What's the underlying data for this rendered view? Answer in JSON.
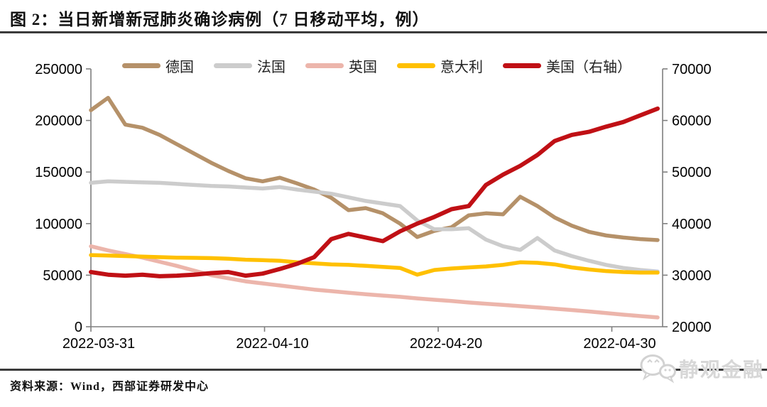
{
  "header": {
    "title": "图 2：当日新增新冠肺炎确诊病例（7 日移动平均，例）"
  },
  "chart_data": {
    "type": "line",
    "title": "当日新增新冠肺炎确诊病例（7日移动平均，例）",
    "grid": false,
    "legend_position": "top",
    "x_dates": [
      "2022-03-31",
      "2022-04-01",
      "2022-04-02",
      "2022-04-03",
      "2022-04-04",
      "2022-04-05",
      "2022-04-06",
      "2022-04-07",
      "2022-04-08",
      "2022-04-09",
      "2022-04-10",
      "2022-04-11",
      "2022-04-12",
      "2022-04-13",
      "2022-04-14",
      "2022-04-15",
      "2022-04-16",
      "2022-04-17",
      "2022-04-18",
      "2022-04-19",
      "2022-04-20",
      "2022-04-21",
      "2022-04-22",
      "2022-04-23",
      "2022-04-24",
      "2022-04-25",
      "2022-04-26",
      "2022-04-27",
      "2022-04-28",
      "2022-04-29",
      "2022-04-30",
      "2022-05-01",
      "2022-05-02",
      "2022-05-03"
    ],
    "x_tick_labels": [
      "2022-03-31",
      "2022-04-10",
      "2022-04-20",
      "2022-04-30"
    ],
    "left_axis": {
      "min": 0,
      "max": 250000,
      "step": 50000,
      "tick_labels": [
        "0",
        "50000",
        "100000",
        "150000",
        "200000",
        "250000"
      ]
    },
    "right_axis": {
      "min": 20000,
      "max": 70000,
      "step": 10000,
      "tick_labels": [
        "20000",
        "30000",
        "40000",
        "50000",
        "60000",
        "70000"
      ]
    },
    "series": [
      {
        "name": "德国",
        "axis": "left",
        "color": "#B59169",
        "values": [
          210000,
          222000,
          196000,
          193000,
          186000,
          177000,
          168000,
          159000,
          151000,
          144000,
          141000,
          144500,
          139000,
          133000,
          125000,
          113000,
          115000,
          110000,
          100000,
          87000,
          93000,
          96500,
          108000,
          110000,
          109000,
          126000,
          117000,
          106000,
          98000,
          92000,
          88500,
          86500,
          85000,
          84000
        ]
      },
      {
        "name": "法国",
        "axis": "left",
        "color": "#CCCCCC",
        "values": [
          139500,
          141000,
          140500,
          140000,
          139500,
          138500,
          137500,
          136500,
          136000,
          135000,
          134000,
          135500,
          133000,
          131000,
          129000,
          125500,
          122000,
          119500,
          117000,
          103000,
          94500,
          94500,
          95500,
          84500,
          78000,
          74500,
          86000,
          74000,
          68500,
          64000,
          60000,
          57000,
          55000,
          53500
        ]
      },
      {
        "name": "英国",
        "axis": "left",
        "color": "#ECB5AB",
        "values": [
          78000,
          74000,
          70500,
          67000,
          63000,
          59000,
          54500,
          50000,
          47000,
          44000,
          42000,
          40000,
          38000,
          36000,
          34500,
          33000,
          31500,
          30200,
          29000,
          27500,
          26200,
          25000,
          23500,
          22300,
          21200,
          20000,
          18800,
          17500,
          16200,
          14800,
          13300,
          11700,
          10300,
          9000
        ]
      },
      {
        "name": "意大利",
        "axis": "left",
        "color": "#FFC000",
        "values": [
          69500,
          69000,
          68500,
          68000,
          67500,
          67000,
          66800,
          66500,
          66000,
          65000,
          64500,
          64000,
          62500,
          61500,
          60500,
          60000,
          59000,
          58000,
          57000,
          50500,
          55000,
          56500,
          57500,
          58500,
          60000,
          62500,
          62000,
          60500,
          57500,
          55500,
          54000,
          53000,
          52500,
          52500
        ]
      },
      {
        "name": "美国（右轴）",
        "axis": "right",
        "color": "#C01015",
        "values": [
          30600,
          30100,
          29900,
          30100,
          29800,
          29900,
          30100,
          30400,
          30600,
          29900,
          30300,
          31200,
          32200,
          33500,
          37000,
          38000,
          37300,
          36600,
          38500,
          40000,
          41300,
          42800,
          43400,
          47500,
          49500,
          51200,
          53300,
          56000,
          57200,
          57800,
          58800,
          59700,
          61000,
          62300
        ]
      }
    ]
  },
  "footer": {
    "source": "资料来源：Wind，西部证券研发中心",
    "watermark": "静观金融"
  }
}
